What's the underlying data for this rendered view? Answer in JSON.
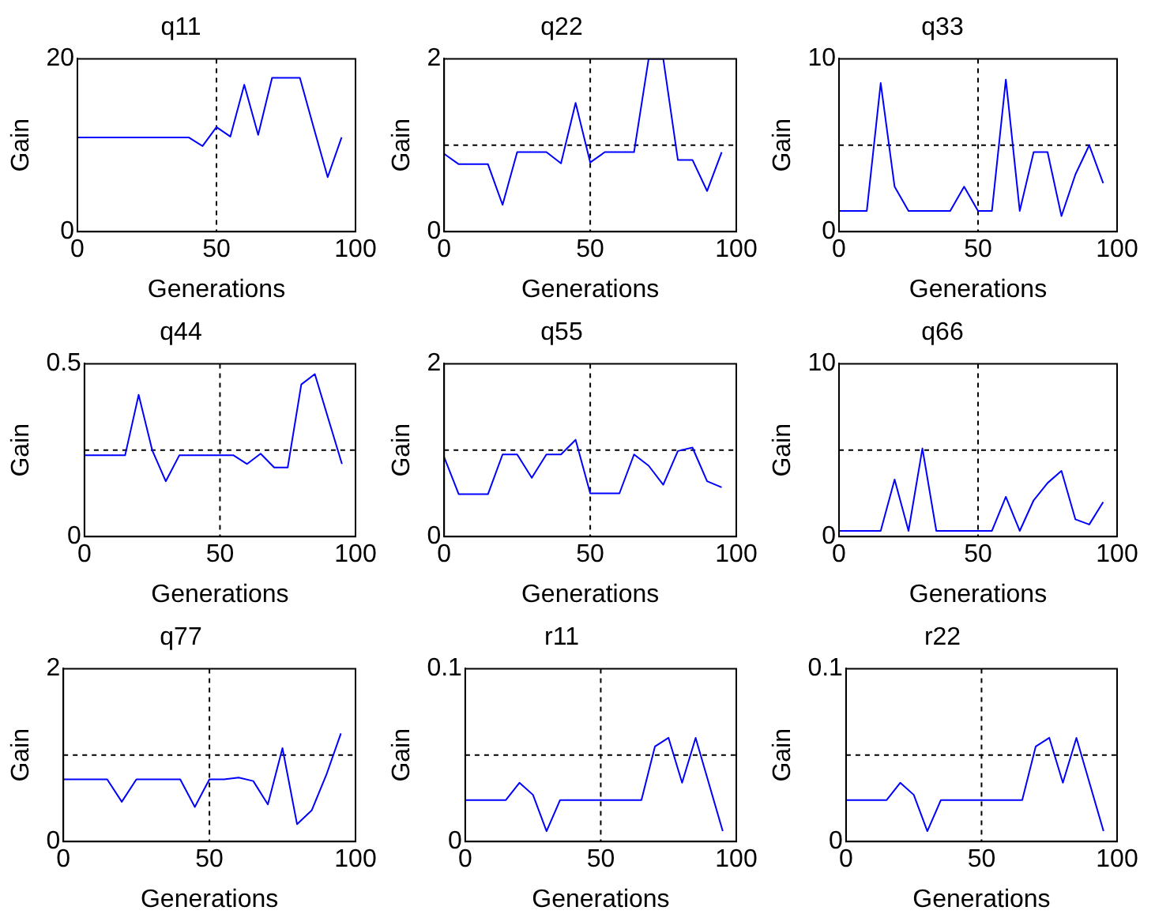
{
  "chart_data": [
    {
      "type": "line",
      "title": "q11",
      "xlabel": "Generations",
      "ylabel": "Gain",
      "x": [
        0,
        5,
        10,
        15,
        20,
        25,
        30,
        35,
        40,
        45,
        50,
        55,
        60,
        65,
        70,
        75,
        80,
        85,
        90,
        95
      ],
      "color": "#0000ff",
      "values": [
        10.9,
        10.9,
        10.9,
        10.9,
        10.9,
        10.9,
        10.9,
        10.9,
        10.9,
        9.9,
        12.1,
        11.0,
        17.0,
        11.2,
        17.8,
        17.8,
        17.8,
        12.0,
        6.3,
        10.9
      ],
      "xlim": [
        0,
        100
      ],
      "ylim": [
        0,
        20
      ],
      "xticks": [
        0,
        50,
        100
      ],
      "yticks": [
        0,
        20
      ],
      "ref_lines": [
        {
          "axis": "x",
          "value": 50
        }
      ],
      "grid": false
    },
    {
      "type": "line",
      "title": "q22",
      "xlabel": "Generations",
      "ylabel": "Gain",
      "x": [
        0,
        5,
        10,
        15,
        20,
        25,
        30,
        35,
        40,
        45,
        50,
        55,
        60,
        65,
        70,
        75,
        80,
        85,
        90,
        95
      ],
      "color": "#0000ff",
      "values": [
        0.9,
        0.78,
        0.78,
        0.78,
        0.31,
        0.92,
        0.92,
        0.92,
        0.79,
        1.49,
        0.8,
        0.92,
        0.92,
        0.92,
        2.0,
        2.0,
        0.83,
        0.83,
        0.47,
        0.92
      ],
      "xlim": [
        0,
        100
      ],
      "ylim": [
        0,
        2
      ],
      "xticks": [
        0,
        50,
        100
      ],
      "yticks": [
        0,
        2
      ],
      "ref_lines": [
        {
          "axis": "x",
          "value": 50
        },
        {
          "axis": "y",
          "value": 1
        }
      ],
      "grid": false
    },
    {
      "type": "line",
      "title": "q33",
      "xlabel": "Generations",
      "ylabel": "Gain",
      "x": [
        0,
        5,
        10,
        15,
        20,
        25,
        30,
        35,
        40,
        45,
        50,
        55,
        60,
        65,
        70,
        75,
        80,
        85,
        90,
        95
      ],
      "color": "#0000ff",
      "values": [
        1.2,
        1.2,
        1.2,
        8.6,
        2.6,
        1.2,
        1.2,
        1.2,
        1.2,
        2.6,
        1.2,
        1.2,
        8.8,
        1.2,
        4.6,
        4.6,
        0.9,
        3.3,
        5.0,
        2.8
      ],
      "xlim": [
        0,
        100
      ],
      "ylim": [
        0,
        10
      ],
      "xticks": [
        0,
        50,
        100
      ],
      "yticks": [
        0,
        10
      ],
      "ref_lines": [
        {
          "axis": "x",
          "value": 50
        },
        {
          "axis": "y",
          "value": 5
        }
      ],
      "grid": false
    },
    {
      "type": "line",
      "title": "q44",
      "xlabel": "Generations",
      "ylabel": "Gain",
      "x": [
        0,
        5,
        10,
        15,
        20,
        25,
        30,
        35,
        40,
        45,
        50,
        55,
        60,
        65,
        70,
        75,
        80,
        85,
        90,
        95
      ],
      "color": "#0000ff",
      "values": [
        0.235,
        0.235,
        0.235,
        0.235,
        0.41,
        0.25,
        0.16,
        0.235,
        0.235,
        0.235,
        0.235,
        0.235,
        0.21,
        0.24,
        0.2,
        0.2,
        0.44,
        0.47,
        0.34,
        0.21
      ],
      "xlim": [
        0,
        100
      ],
      "ylim": [
        0,
        0.5
      ],
      "xticks": [
        0,
        50,
        100
      ],
      "yticks": [
        0,
        0.5
      ],
      "ref_lines": [
        {
          "axis": "x",
          "value": 50
        },
        {
          "axis": "y",
          "value": 0.25
        }
      ],
      "grid": false
    },
    {
      "type": "line",
      "title": "q55",
      "xlabel": "Generations",
      "ylabel": "Gain",
      "x": [
        0,
        5,
        10,
        15,
        20,
        25,
        30,
        35,
        40,
        45,
        50,
        55,
        60,
        65,
        70,
        75,
        80,
        85,
        90,
        95
      ],
      "color": "#0000ff",
      "values": [
        0.92,
        0.49,
        0.49,
        0.49,
        0.95,
        0.95,
        0.68,
        0.95,
        0.95,
        1.12,
        0.5,
        0.5,
        0.5,
        0.95,
        0.82,
        0.6,
        0.99,
        1.03,
        0.64,
        0.57
      ],
      "xlim": [
        0,
        100
      ],
      "ylim": [
        0,
        2
      ],
      "xticks": [
        0,
        50,
        100
      ],
      "yticks": [
        0,
        2
      ],
      "ref_lines": [
        {
          "axis": "x",
          "value": 50
        },
        {
          "axis": "y",
          "value": 1
        }
      ],
      "grid": false
    },
    {
      "type": "line",
      "title": "q66",
      "xlabel": "Generations",
      "ylabel": "Gain",
      "x": [
        0,
        5,
        10,
        15,
        20,
        25,
        30,
        35,
        40,
        45,
        50,
        55,
        60,
        65,
        70,
        75,
        80,
        85,
        90,
        95
      ],
      "color": "#0000ff",
      "values": [
        0.33,
        0.33,
        0.33,
        0.33,
        3.3,
        0.33,
        5.1,
        0.33,
        0.33,
        0.33,
        0.33,
        0.33,
        2.3,
        0.33,
        2.1,
        3.1,
        3.8,
        1.0,
        0.7,
        2.0
      ],
      "xlim": [
        0,
        100
      ],
      "ylim": [
        0,
        10
      ],
      "xticks": [
        0,
        50,
        100
      ],
      "yticks": [
        0,
        10
      ],
      "ref_lines": [
        {
          "axis": "x",
          "value": 50
        },
        {
          "axis": "y",
          "value": 5
        }
      ],
      "grid": false
    },
    {
      "type": "line",
      "title": "q77",
      "xlabel": "Generations",
      "ylabel": "Gain",
      "x": [
        0,
        5,
        10,
        15,
        20,
        25,
        30,
        35,
        40,
        45,
        50,
        55,
        60,
        65,
        70,
        75,
        80,
        85,
        90,
        95
      ],
      "color": "#0000ff",
      "values": [
        0.72,
        0.72,
        0.72,
        0.72,
        0.46,
        0.72,
        0.72,
        0.72,
        0.72,
        0.4,
        0.72,
        0.72,
        0.74,
        0.7,
        0.43,
        1.08,
        0.2,
        0.36,
        0.77,
        1.25
      ],
      "xlim": [
        0,
        100
      ],
      "ylim": [
        0,
        2
      ],
      "xticks": [
        0,
        50,
        100
      ],
      "yticks": [
        0,
        2
      ],
      "ref_lines": [
        {
          "axis": "x",
          "value": 50
        },
        {
          "axis": "y",
          "value": 1
        }
      ],
      "grid": false
    },
    {
      "type": "line",
      "title": "r11",
      "xlabel": "Generations",
      "ylabel": "Gain",
      "x": [
        0,
        5,
        10,
        15,
        20,
        25,
        30,
        35,
        40,
        45,
        50,
        55,
        60,
        65,
        70,
        75,
        80,
        85,
        90,
        95
      ],
      "color": "#0000ff",
      "values": [
        0.024,
        0.024,
        0.024,
        0.024,
        0.034,
        0.027,
        0.006,
        0.024,
        0.024,
        0.024,
        0.024,
        0.024,
        0.024,
        0.024,
        0.055,
        0.06,
        0.034,
        0.06,
        0.033,
        0.006
      ],
      "xlim": [
        0,
        100
      ],
      "ylim": [
        0,
        0.1
      ],
      "xticks": [
        0,
        50,
        100
      ],
      "yticks": [
        0,
        0.1
      ],
      "ref_lines": [
        {
          "axis": "x",
          "value": 50
        },
        {
          "axis": "y",
          "value": 0.05
        }
      ],
      "grid": false
    },
    {
      "type": "line",
      "title": "r22",
      "xlabel": "Generations",
      "ylabel": "Gain",
      "x": [
        0,
        5,
        10,
        15,
        20,
        25,
        30,
        35,
        40,
        45,
        50,
        55,
        60,
        65,
        70,
        75,
        80,
        85,
        90,
        95
      ],
      "color": "#0000ff",
      "values": [
        0.024,
        0.024,
        0.024,
        0.024,
        0.034,
        0.027,
        0.006,
        0.024,
        0.024,
        0.024,
        0.024,
        0.024,
        0.024,
        0.024,
        0.055,
        0.06,
        0.034,
        0.06,
        0.033,
        0.006
      ],
      "xlim": [
        0,
        100
      ],
      "ylim": [
        0,
        0.1
      ],
      "xticks": [
        0,
        50,
        100
      ],
      "yticks": [
        0,
        0.1
      ],
      "ref_lines": [
        {
          "axis": "x",
          "value": 50
        },
        {
          "axis": "y",
          "value": 0.05
        }
      ],
      "grid": false
    }
  ]
}
